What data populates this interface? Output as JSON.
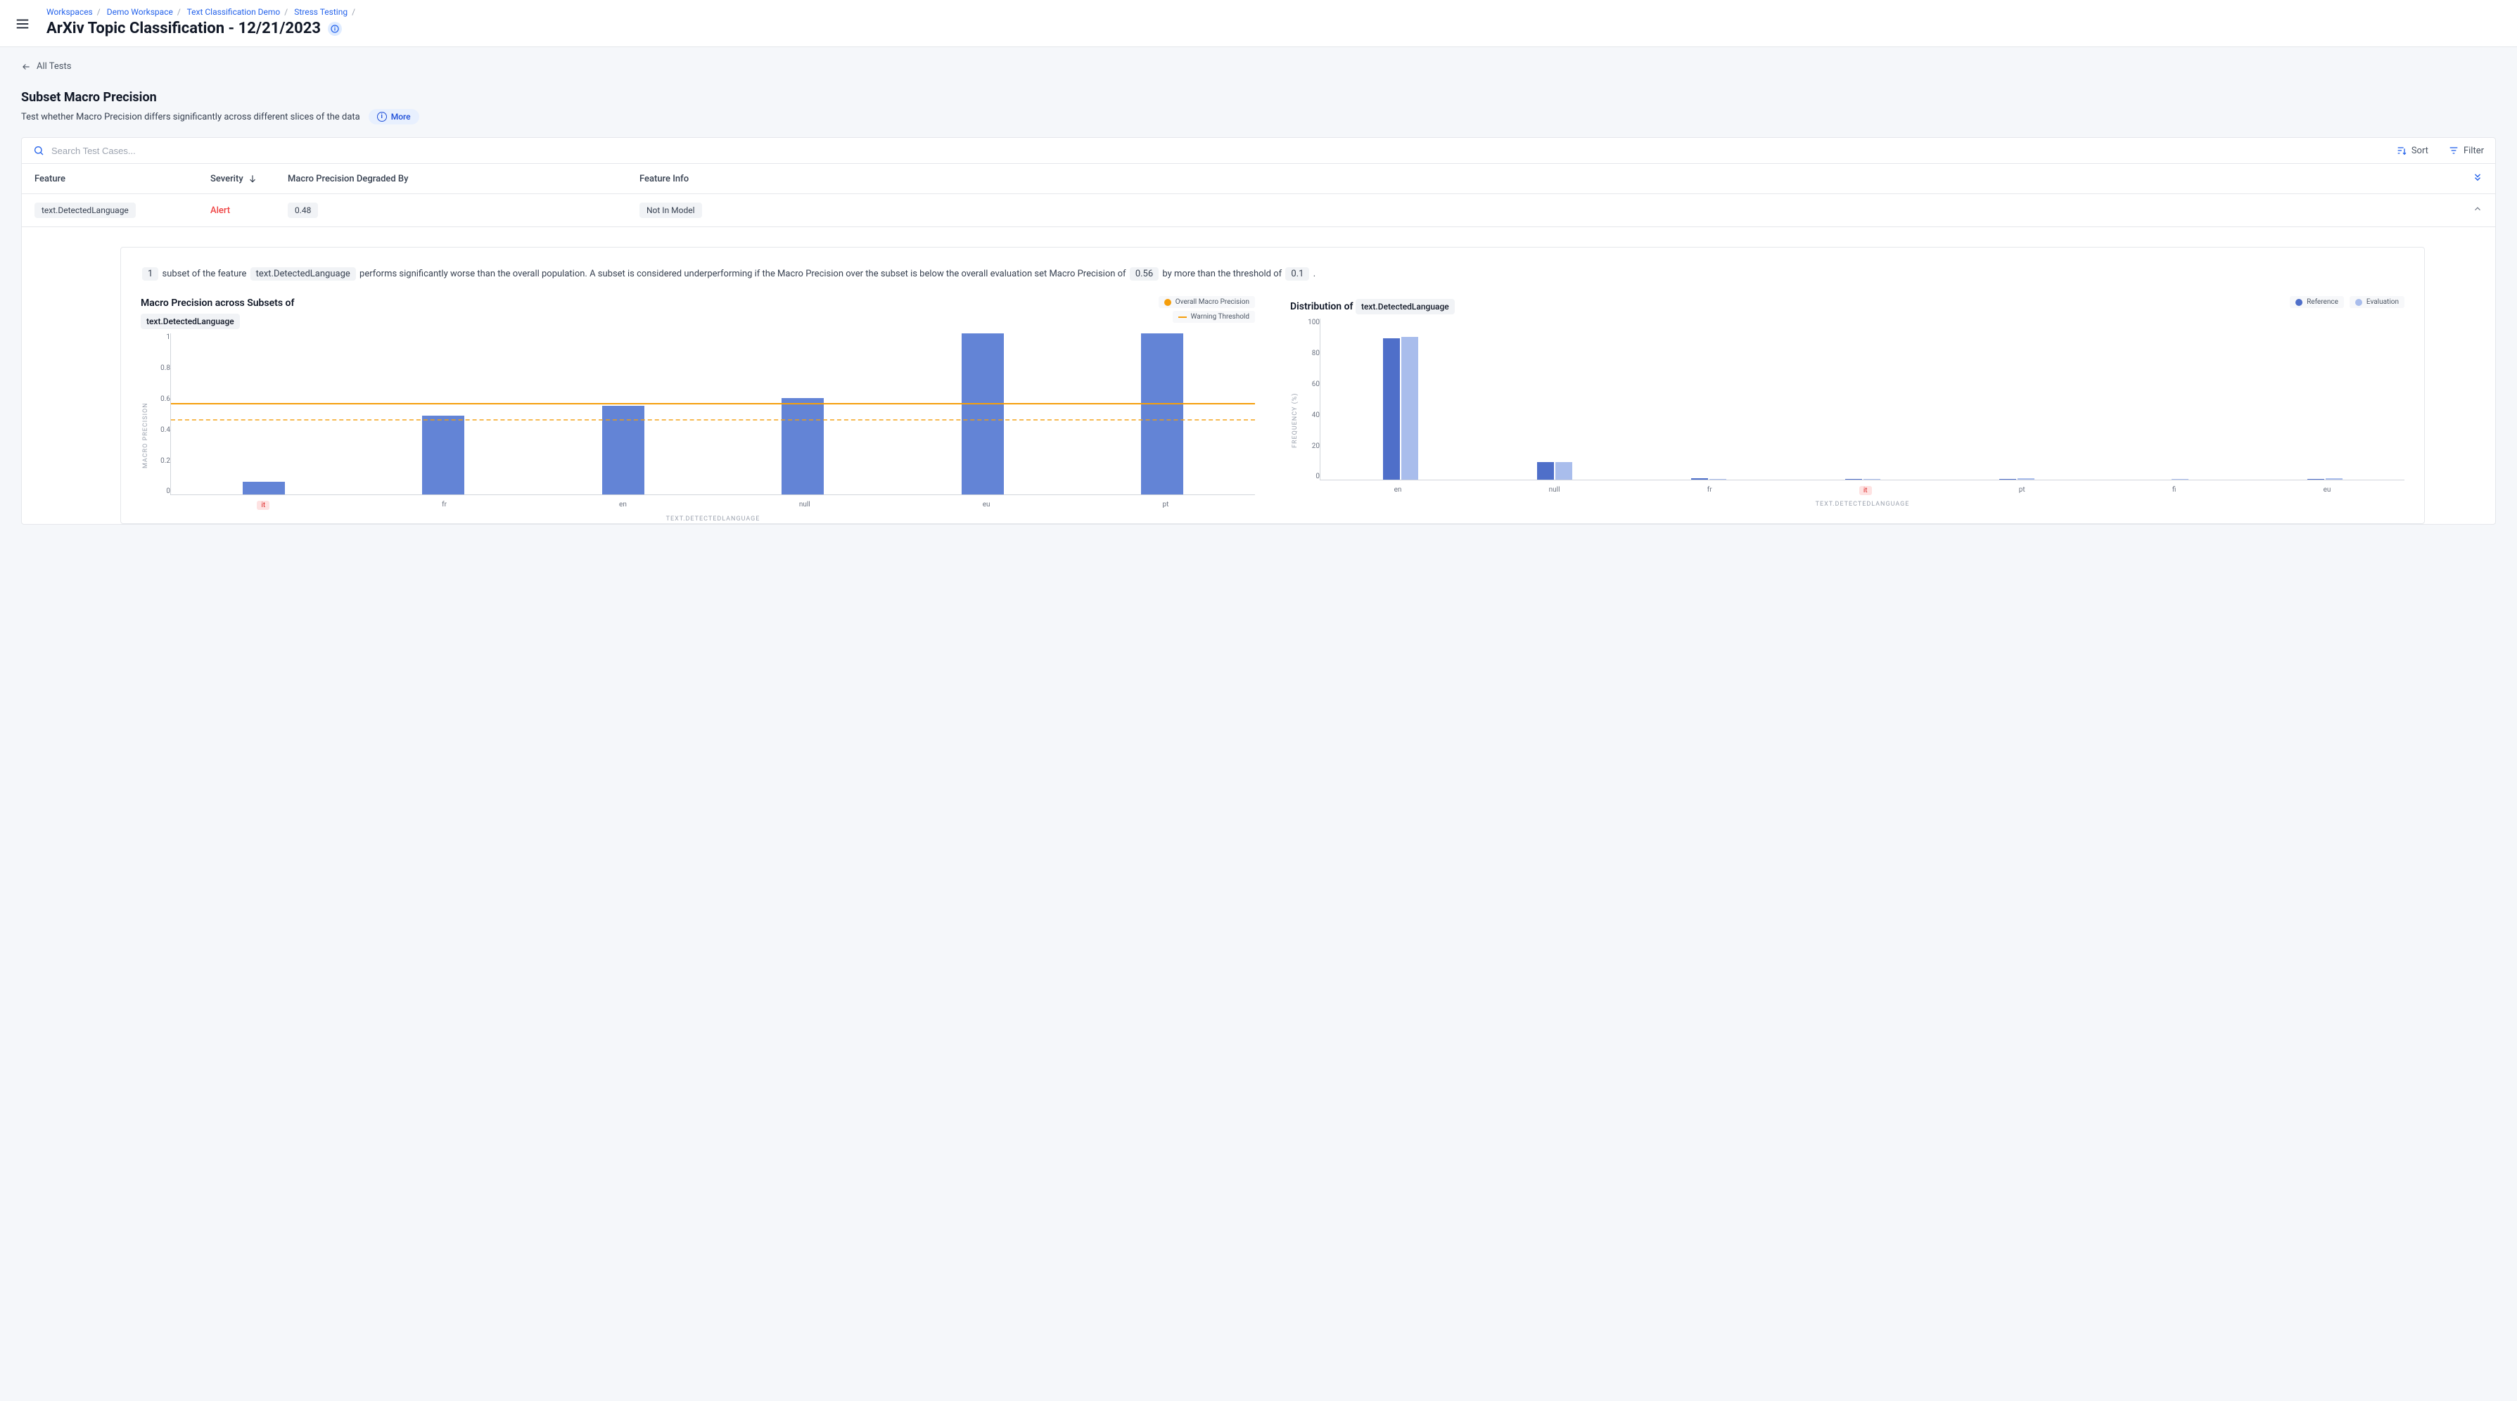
{
  "breadcrumb": {
    "items": [
      "Workspaces",
      "Demo Workspace",
      "Text Classification Demo",
      "Stress Testing"
    ]
  },
  "page_title": "ArXiv Topic Classification - 12/21/2023",
  "back_link": "All Tests",
  "section": {
    "title": "Subset Macro Precision",
    "subtitle": "Test whether Macro Precision differs significantly across different slices of the data",
    "more_label": "More"
  },
  "search": {
    "placeholder": "Search Test Cases..."
  },
  "toolbar": {
    "sort": "Sort",
    "filter": "Filter"
  },
  "table": {
    "columns": {
      "feature": "Feature",
      "severity": "Severity",
      "metric": "Macro Precision Degraded By",
      "info": "Feature Info"
    },
    "row": {
      "feature": "text.DetectedLanguage",
      "severity": "Alert",
      "degraded_by": "0.48",
      "info": "Not In Model"
    }
  },
  "detail": {
    "text_parts": {
      "count": "1",
      "p1": "subset of the feature",
      "feature": "text.DetectedLanguage",
      "p2": "performs significantly worse than the overall population. A subset is considered underperforming if the Macro Precision over the subset is below the overall evaluation set Macro Precision of",
      "overall": "0.56",
      "p3": "by more than the threshold of",
      "threshold": "0.1",
      "p4": "."
    }
  },
  "chart_left": {
    "title_prefix": "Macro Precision across Subsets of",
    "title_chip": "text.DetectedLanguage",
    "legend1": "Overall Macro Precision",
    "legend2": "Warning Threshold",
    "y_label": "MACRO PRECISION",
    "x_label": "TEXT.DETECTEDLANGUAGE",
    "ylim": [
      0,
      1
    ],
    "yticks": [
      "1",
      "0.8",
      "0.6",
      "0.4",
      "0.2",
      "0"
    ],
    "overall_line": 0.56,
    "threshold_line": 0.46,
    "bar_color": "#6384d6",
    "line_color": "#f59e0b",
    "categories": [
      "it",
      "fr",
      "en",
      "null",
      "eu",
      "pt"
    ],
    "highlight_category": "it",
    "values": [
      0.08,
      0.49,
      0.55,
      0.6,
      1.0,
      1.0
    ]
  },
  "chart_right": {
    "title_prefix": "Distribution of",
    "title_chip": "text.DetectedLanguage",
    "legend1": "Reference",
    "legend2": "Evaluation",
    "y_label": "FREQUENCY (%)",
    "x_label": "TEXT.DETECTEDLANGUAGE",
    "ylim": [
      0,
      100
    ],
    "yticks": [
      "100",
      "80",
      "60",
      "40",
      "20",
      "0"
    ],
    "ref_color": "#4f6fc9",
    "eval_color": "#a9bdec",
    "categories": [
      "en",
      "null",
      "fr",
      "it",
      "pt",
      "fi",
      "eu"
    ],
    "highlight_category": "it",
    "ref_values": [
      88,
      11,
      1,
      0.5,
      0.5,
      0,
      0.5
    ],
    "eval_values": [
      89,
      11,
      0.5,
      0.5,
      1,
      0.5,
      1
    ]
  }
}
